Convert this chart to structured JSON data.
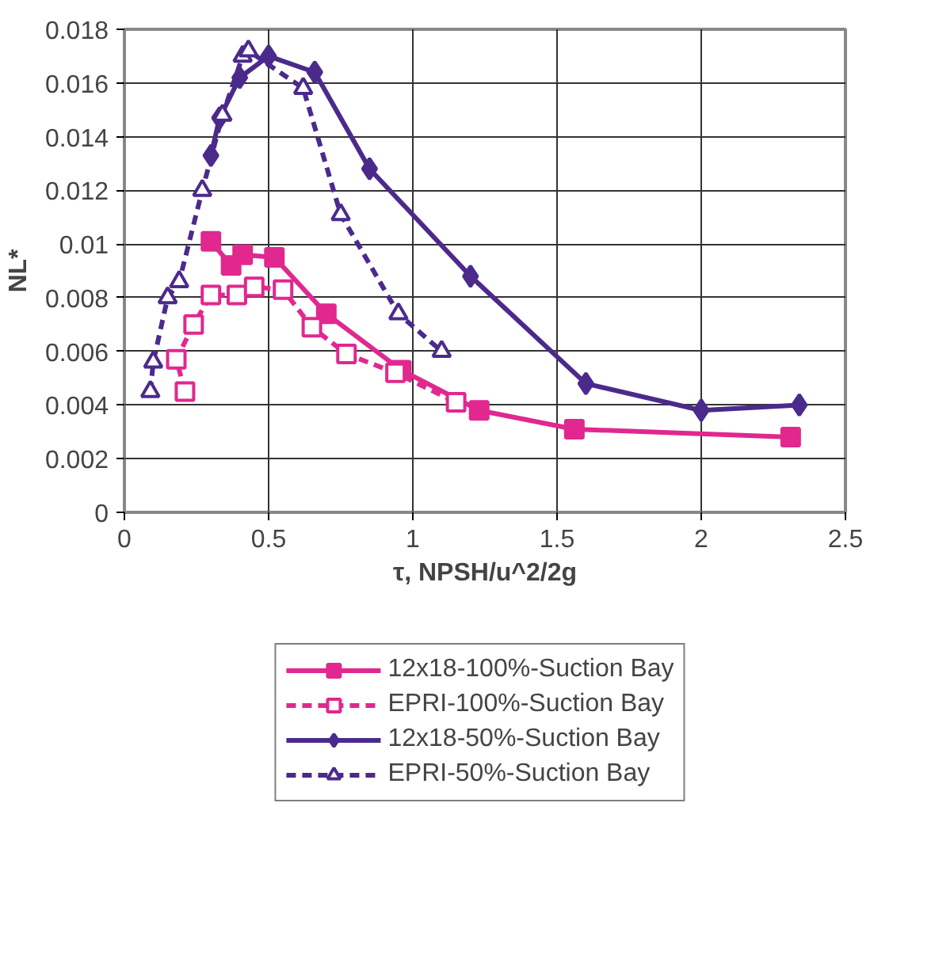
{
  "chart_data": {
    "type": "line",
    "xlabel": "τ, NPSH/u^2/2g",
    "ylabel": "NL*",
    "xlim": [
      0,
      2.5
    ],
    "ylim": [
      0,
      0.018
    ],
    "xticks": [
      0,
      0.5,
      1,
      1.5,
      2,
      2.5
    ],
    "yticks": [
      0,
      0.002,
      0.004,
      0.006,
      0.008,
      0.01,
      0.012,
      0.014,
      0.016,
      0.018
    ],
    "grid": true,
    "legend": "bottom",
    "series": [
      {
        "name": "12x18-100%-Suction Bay",
        "color": "#e0288f",
        "marker": "square",
        "line_style": "solid",
        "x": [
          0.3,
          0.37,
          0.41,
          0.52,
          0.7,
          0.96,
          1.23,
          1.56,
          2.31
        ],
        "values": [
          0.0101,
          0.0092,
          0.0096,
          0.0095,
          0.0074,
          0.0053,
          0.0038,
          0.0031,
          0.0028
        ]
      },
      {
        "name": "EPRI-100%-Suction Bay",
        "color": "#e0288f",
        "marker": "square",
        "line_style": "dashed",
        "x": [
          0.21,
          0.18,
          0.24,
          0.3,
          0.39,
          0.45,
          0.55,
          0.65,
          0.77,
          0.94,
          1.15
        ],
        "values": [
          0.0045,
          0.0057,
          0.007,
          0.0081,
          0.0081,
          0.0084,
          0.0083,
          0.0069,
          0.0059,
          0.0052,
          0.0041
        ]
      },
      {
        "name": "12x18-50%-Suction Bay",
        "color": "#4b2a8c",
        "marker": "diamond",
        "line_style": "solid",
        "x": [
          0.3,
          0.33,
          0.4,
          0.5,
          0.66,
          0.85,
          1.2,
          1.6,
          2.0,
          2.34
        ],
        "values": [
          0.0133,
          0.0147,
          0.0162,
          0.017,
          0.0164,
          0.0128,
          0.0088,
          0.0048,
          0.0038,
          0.004
        ]
      },
      {
        "name": "EPRI-50%-Suction Bay",
        "color": "#4b2a8c",
        "marker": "triangle",
        "line_style": "dashed",
        "x": [
          0.09,
          0.1,
          0.15,
          0.19,
          0.27,
          0.34,
          0.41,
          0.43,
          0.62,
          0.75,
          0.95,
          1.1
        ],
        "values": [
          0.0045,
          0.0056,
          0.008,
          0.0086,
          0.012,
          0.0148,
          0.017,
          0.0172,
          0.0158,
          0.0111,
          0.0074,
          0.006
        ]
      }
    ]
  }
}
